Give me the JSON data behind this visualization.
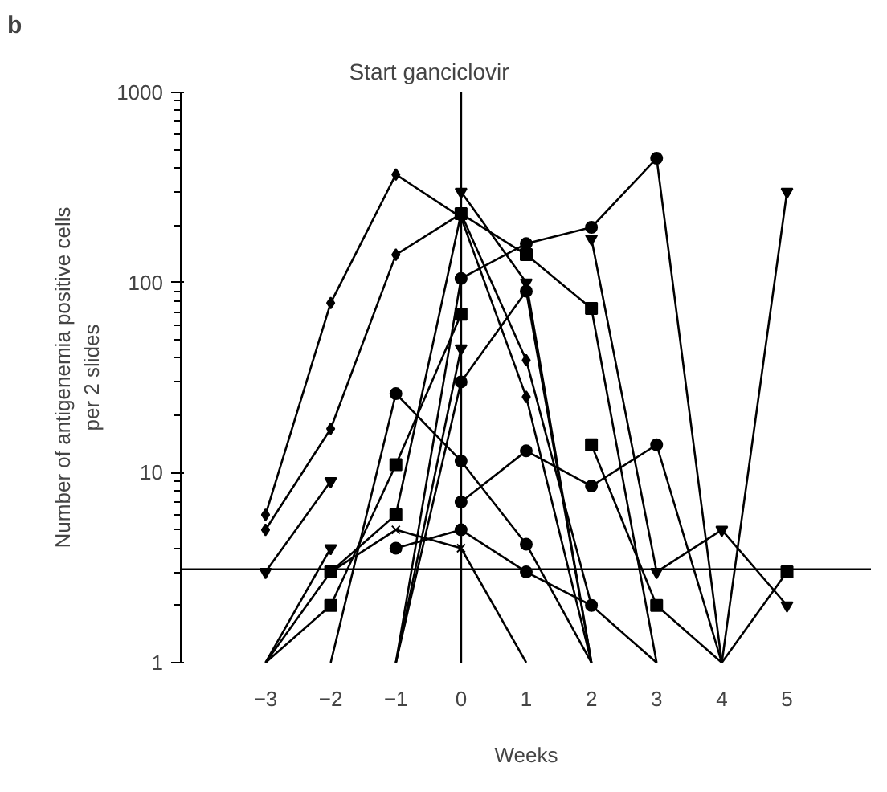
{
  "chart_data": {
    "type": "line",
    "xlabel": "Weeks",
    "ylabel": "Number of antigenemia positive cells\nper 2 slides",
    "annotations": [
      "b"
    ],
    "x": [
      -3,
      -2,
      -1,
      0,
      1,
      2,
      3,
      4,
      5
    ],
    "xlim": [
      -4.3,
      6.3
    ],
    "xticks": [
      -3,
      -2,
      -1,
      0,
      1,
      2,
      3,
      4,
      5
    ],
    "ylim": [
      1,
      1000
    ],
    "yticks": [
      1,
      10,
      100,
      1000
    ],
    "log": "y",
    "grid": false,
    "ref_lines": [
      {
        "axis": "x",
        "value": 0,
        "label": "Start ganciclovir"
      },
      {
        "axis": "y",
        "value": 3.1
      }
    ],
    "series": [
      {
        "color": "#000000",
        "marker": "diamond",
        "values": [
          6,
          78,
          370,
          220,
          25,
          1,
          null,
          null,
          null
        ]
      },
      {
        "color": "#000000",
        "marker": "diamond",
        "values": [
          5,
          17,
          140,
          230,
          39,
          2,
          null,
          null,
          null
        ]
      },
      {
        "color": "#000000",
        "marker": "triangle",
        "values": [
          3,
          9,
          null,
          300,
          100,
          1,
          null,
          null,
          null
        ]
      },
      {
        "color": "#000000",
        "marker": "triangle",
        "values": [
          1,
          4,
          null,
          null,
          null,
          170,
          3,
          5,
          2
        ]
      },
      {
        "color": "#000000",
        "marker": "circle",
        "values": [
          null,
          null,
          null,
          7,
          13,
          8.5,
          14,
          1,
          null
        ]
      },
      {
        "color": "#000000",
        "marker": "circle",
        "values": [
          null,
          null,
          1,
          105,
          160,
          195,
          450,
          1,
          null
        ]
      },
      {
        "color": "#000000",
        "marker": "triangle",
        "values": [
          null,
          null,
          null,
          null,
          null,
          null,
          null,
          1,
          300
        ]
      },
      {
        "color": "#000000",
        "marker": "square",
        "values": [
          null,
          3,
          6,
          230,
          140,
          73,
          1,
          null,
          null
        ]
      },
      {
        "color": "#000000",
        "marker": "square",
        "values": [
          null,
          null,
          null,
          null,
          null,
          null,
          null,
          1,
          3
        ]
      },
      {
        "color": "#000000",
        "marker": "square",
        "values": [
          1,
          2,
          11,
          68,
          null,
          14,
          2,
          1,
          null
        ]
      },
      {
        "color": "#000000",
        "marker": "circle",
        "values": [
          null,
          1,
          26,
          11.5,
          4.2,
          1,
          null,
          null,
          null
        ]
      },
      {
        "color": "#000000",
        "marker": "cross",
        "values": [
          1,
          3,
          5,
          4,
          1,
          null,
          null,
          null,
          null
        ]
      },
      {
        "color": "#000000",
        "marker": "circle",
        "values": [
          null,
          null,
          4,
          5,
          3,
          2,
          1,
          null,
          null
        ]
      },
      {
        "color": "#000000",
        "marker": "triangle",
        "values": [
          null,
          null,
          1,
          45,
          null,
          null,
          null,
          null,
          null
        ]
      },
      {
        "color": "#000000",
        "marker": "circle",
        "values": [
          null,
          null,
          1,
          30,
          90,
          1,
          null,
          null,
          null
        ]
      }
    ]
  }
}
